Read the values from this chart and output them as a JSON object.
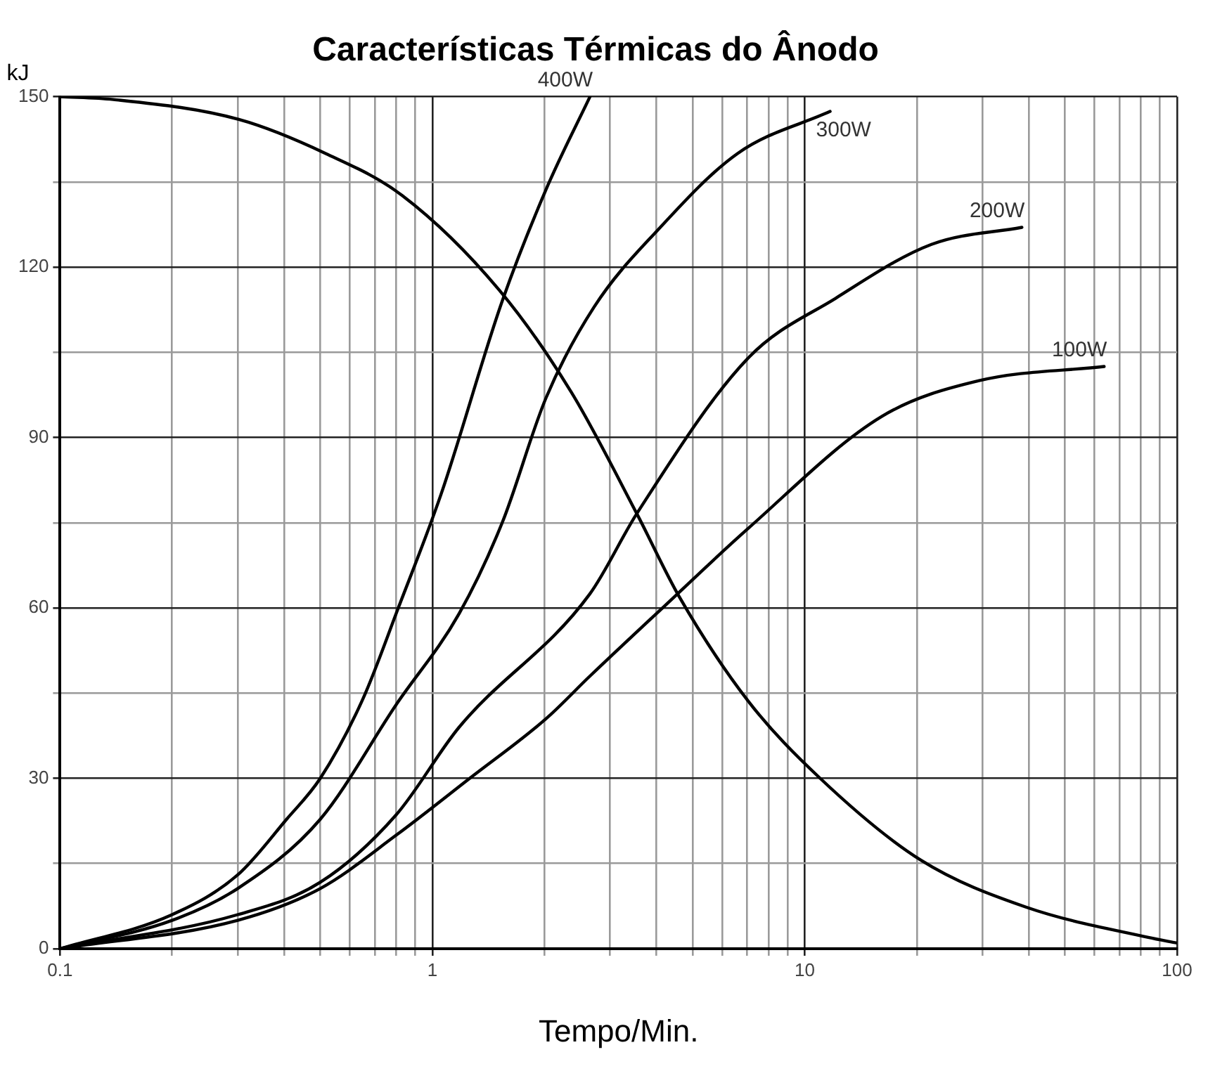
{
  "chart_data": {
    "type": "line",
    "title": "Características Térmicas do Ânodo",
    "xlabel": "Tempo/Min.",
    "ylabel": "kJ",
    "log": "x",
    "xlim": [
      0.1,
      100
    ],
    "ylim": [
      0,
      150
    ],
    "xticks": [
      0.1,
      {
        "value": 0.2,
        "label": null
      },
      {
        "value": 0.3,
        "label": null
      },
      {
        "value": 0.4,
        "label": null
      },
      {
        "value": 0.5,
        "label": null
      },
      {
        "value": 0.6,
        "label": null
      },
      {
        "value": 0.7,
        "label": null
      },
      {
        "value": 0.8,
        "label": null
      },
      {
        "value": 0.9,
        "label": null
      },
      1,
      {
        "value": 2,
        "label": null
      },
      {
        "value": 3,
        "label": null
      },
      {
        "value": 4,
        "label": null
      },
      {
        "value": 5,
        "label": null
      },
      {
        "value": 6,
        "label": null
      },
      {
        "value": 7,
        "label": null
      },
      {
        "value": 8,
        "label": null
      },
      {
        "value": 9,
        "label": null
      },
      10,
      {
        "value": 20,
        "label": null
      },
      {
        "value": 30,
        "label": null
      },
      {
        "value": 40,
        "label": null
      },
      {
        "value": 50,
        "label": null
      },
      {
        "value": 60,
        "label": null
      },
      {
        "value": 70,
        "label": null
      },
      {
        "value": 80,
        "label": null
      },
      {
        "value": 90,
        "label": null
      },
      100
    ],
    "yticks": [
      0,
      {
        "value": 15,
        "label": null
      },
      30,
      {
        "value": 45,
        "label": null
      },
      60,
      {
        "value": 75,
        "label": null
      },
      90,
      {
        "value": 105,
        "label": null
      },
      120,
      {
        "value": 135,
        "label": null
      },
      150
    ],
    "grid": true,
    "legend": false,
    "marker": "none",
    "line_style": "solid",
    "series": [
      {
        "color": "#000000",
        "x": [
          0.1,
          0.139,
          0.302,
          0.517,
          0.83,
          1.51,
          2.36,
          3.54,
          4.6,
          7.05,
          11.0,
          20.5,
          39.4,
          83.7,
          100
        ],
        "values": [
          150,
          149.5,
          146,
          140,
          132.6,
          116,
          98,
          76.6,
          62,
          43.6,
          30,
          15.6,
          7.3,
          2,
          1
        ]
      },
      {
        "name": "400W",
        "color": "#000000",
        "x": [
          0.1,
          0.2,
          0.3,
          0.406,
          0.5,
          0.651,
          0.81,
          1.055,
          1.54,
          2.03,
          2.65
        ],
        "values": [
          0,
          6,
          13,
          22.8,
          30,
          44,
          60,
          80,
          114,
          134,
          150
        ]
      },
      {
        "name": "300W",
        "color": "#000000",
        "x": [
          0.1,
          0.2,
          0.3,
          0.5,
          0.8,
          1.18,
          1.54,
          2.02,
          2.72,
          4.04,
          6.6,
          11.7
        ],
        "values": [
          0,
          5,
          10.6,
          22.8,
          43,
          59,
          75,
          97,
          113,
          126.6,
          140,
          147.4
        ]
      },
      {
        "name": "200W",
        "color": "#000000",
        "x": [
          0.1,
          0.3,
          0.5,
          0.8,
          1.18,
          2.65,
          3.54,
          7.05,
          12.1,
          21.9,
          38.3
        ],
        "values": [
          0,
          6,
          11.7,
          23.6,
          39,
          62.5,
          76.6,
          104,
          114.5,
          124,
          127
        ]
      },
      {
        "name": "100W",
        "color": "#000000",
        "x": [
          0.1,
          0.3,
          0.5,
          0.8,
          1.26,
          2.02,
          2.65,
          4.15,
          7.05,
          16.1,
          29.4,
          63.7
        ],
        "values": [
          0,
          5,
          10.6,
          20,
          30,
          40.5,
          48,
          60,
          74,
          93.7,
          100,
          102.5
        ]
      }
    ]
  }
}
